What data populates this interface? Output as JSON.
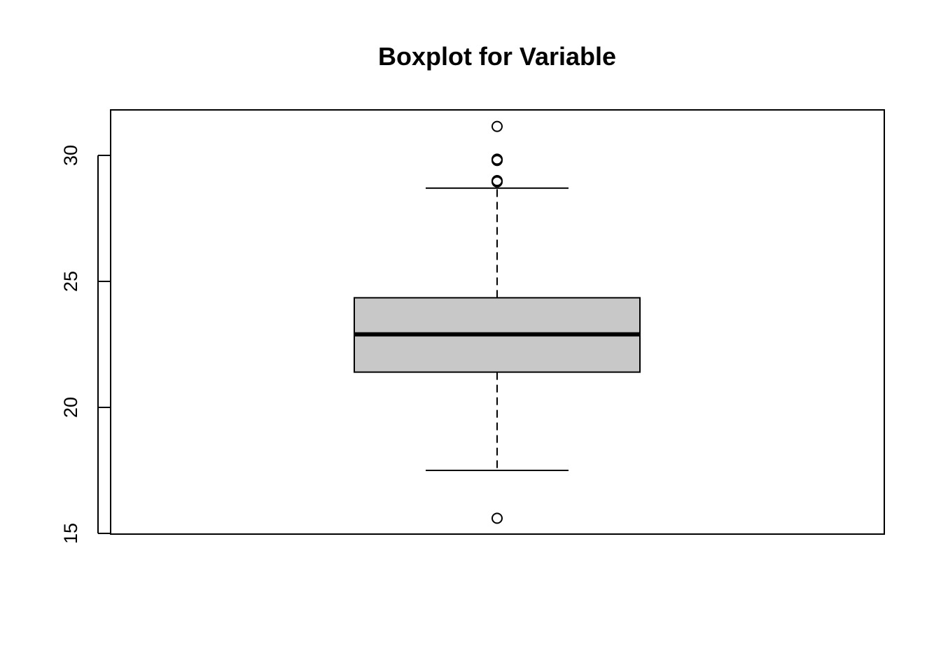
{
  "chart_data": {
    "type": "boxplot",
    "title": "Boxplot for Variable",
    "xlabel": "",
    "ylabel": "",
    "ylim": [
      15,
      31.8
    ],
    "y_ticks": [
      15,
      20,
      25,
      30
    ],
    "y_tick_labels": [
      "15",
      "20",
      "25",
      "30"
    ],
    "box": {
      "lower_whisker": 17.5,
      "q1": 21.4,
      "median": 22.9,
      "q3": 24.35,
      "upper_whisker": 28.7
    },
    "outliers": [
      31.15,
      29.85,
      29.8,
      29.0,
      28.95,
      15.6
    ],
    "colors": {
      "box_fill": "#c8c8c8",
      "stroke": "#000000"
    }
  }
}
